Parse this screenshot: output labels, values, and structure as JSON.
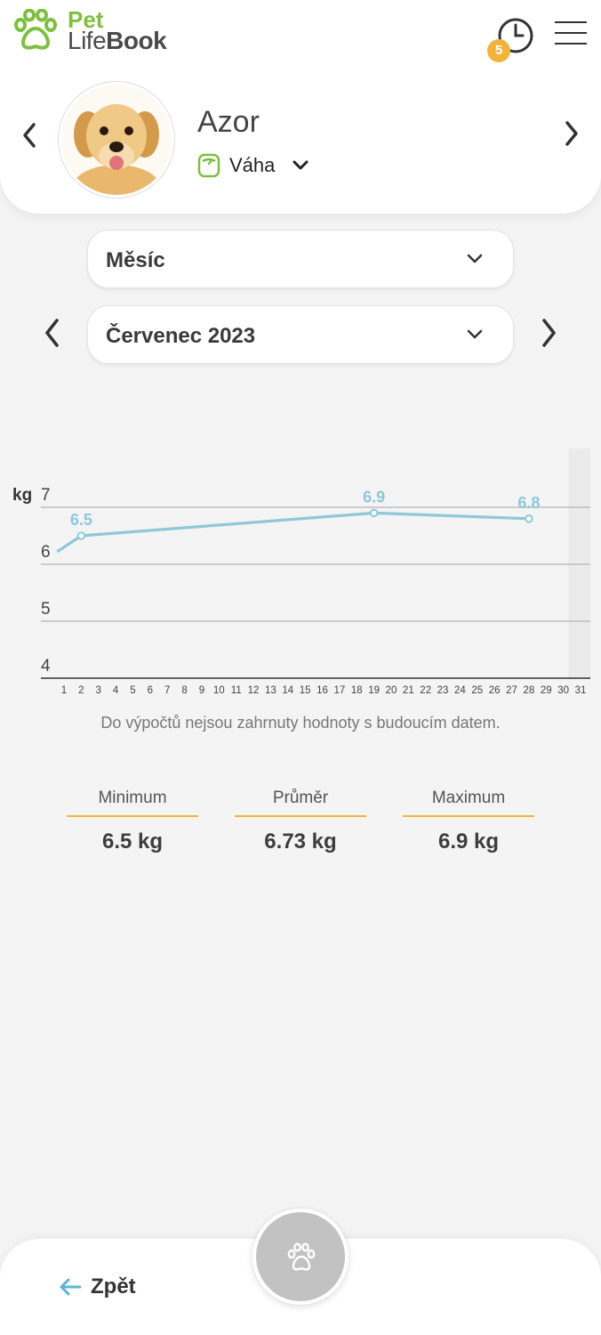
{
  "app": {
    "logo_line1": "Pet",
    "logo_line2_a": "Life",
    "logo_line2_b": "Book",
    "notification_count": "5",
    "icons": [
      "paw-logo-icon",
      "history-clock-icon",
      "hamburger-menu-icon"
    ]
  },
  "pet": {
    "name": "Azor",
    "record_type": "Váha",
    "record_icon": "scale-icon"
  },
  "filters": {
    "granularity": "Měsíc",
    "period": "Červenec 2023"
  },
  "chart_data": {
    "type": "line",
    "ylabel": "kg",
    "ylim": [
      4,
      7
    ],
    "yticks": [
      4,
      5,
      6,
      7
    ],
    "xticks": [
      1,
      2,
      3,
      4,
      5,
      6,
      7,
      8,
      9,
      10,
      11,
      12,
      13,
      14,
      15,
      16,
      17,
      18,
      19,
      20,
      21,
      22,
      23,
      24,
      25,
      26,
      27,
      28,
      29,
      30,
      31
    ],
    "grid": true,
    "future_shaded_from_day": 30.5,
    "series": [
      {
        "color": "#8ec8d9",
        "points": [
          {
            "x": 0.6,
            "y": 6.22
          },
          {
            "x": 2,
            "y": 6.5,
            "label": "6.5"
          },
          {
            "x": 19,
            "y": 6.9,
            "label": "6.9"
          },
          {
            "x": 28,
            "y": 6.8,
            "label": "6.8"
          }
        ]
      }
    ]
  },
  "note": "Do výpočtů nejsou zahrnuty hodnoty s budoucím datem.",
  "stats": [
    {
      "label": "Minimum",
      "value": "6.5 kg"
    },
    {
      "label": "Průměr",
      "value": "6.73 kg"
    },
    {
      "label": "Maximum",
      "value": "6.9 kg"
    }
  ],
  "footer": {
    "back_label": "Zpět",
    "fab_icon": "paw-icon"
  },
  "colors": {
    "brand_green": "#7fbf3f",
    "accent_orange": "#f2b33a",
    "line_blue": "#8ec8d9",
    "back_arrow_blue": "#5fb3d6"
  }
}
